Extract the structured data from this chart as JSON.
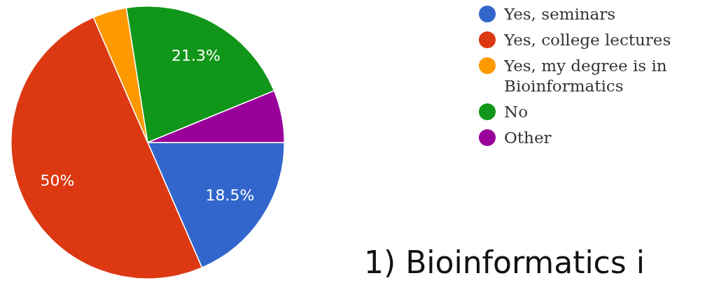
{
  "chart_data": {
    "type": "pie",
    "categories": [
      "Yes, seminars",
      "Yes, college lectures",
      "Yes, my degree is in Bioinformatics",
      "No",
      "Other"
    ],
    "values": [
      18.5,
      50,
      4,
      21.3,
      6.2
    ],
    "colors": [
      "#3366cc",
      "#dc3912",
      "#ff9900",
      "#109618",
      "#990099"
    ],
    "value_labels": [
      "18.5%",
      "50%",
      null,
      "21.3%",
      null
    ],
    "legend": "top right",
    "annotations": [
      "1) Bioinformatics i"
    ]
  }
}
